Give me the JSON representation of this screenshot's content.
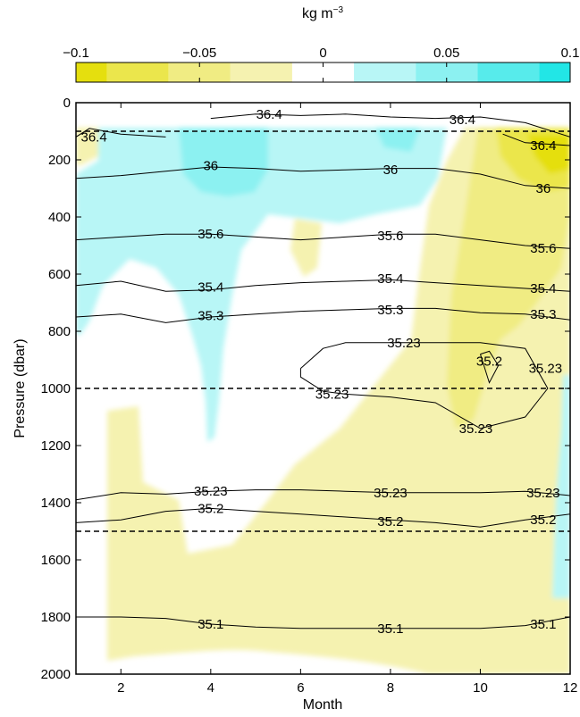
{
  "chart_data": {
    "type": "heatmap",
    "title": "",
    "xlabel": "Month",
    "ylabel": "Pressure (dbar)",
    "xlim": [
      1,
      12
    ],
    "ylim": [
      0,
      2000
    ],
    "y_reversed": true,
    "x_ticks": [
      "2",
      "4",
      "6",
      "8",
      "10",
      "12"
    ],
    "y_ticks": [
      "0",
      "200",
      "400",
      "600",
      "800",
      "1000",
      "1200",
      "1400",
      "1600",
      "1800",
      "2000"
    ],
    "colorbar": {
      "label": "kg m",
      "label_superscript": "−3",
      "range": [
        -0.1,
        0.1
      ],
      "tick_labels": [
        "−0.1",
        "−0.05",
        "0",
        "0.05",
        "0.1"
      ],
      "tick_values": [
        -0.1,
        -0.05,
        0,
        0.05,
        0.1
      ],
      "bins": [
        {
          "from": -0.1,
          "to": -0.0875,
          "color": "#e5df0e"
        },
        {
          "from": -0.0875,
          "to": -0.0625,
          "color": "#ebe64c"
        },
        {
          "from": -0.0625,
          "to": -0.0375,
          "color": "#f0ec83"
        },
        {
          "from": -0.0375,
          "to": -0.0125,
          "color": "#f5f2b0"
        },
        {
          "from": -0.0125,
          "to": 0.0125,
          "color": "#ffffff"
        },
        {
          "from": 0.0125,
          "to": 0.0375,
          "color": "#b8f6f6"
        },
        {
          "from": 0.0375,
          "to": 0.0625,
          "color": "#8cf1f1"
        },
        {
          "from": 0.0625,
          "to": 0.0875,
          "color": "#57ebeb"
        },
        {
          "from": 0.0875,
          "to": 0.1,
          "color": "#22e6e6"
        }
      ]
    },
    "reference_lines_pressure": [
      100,
      1000,
      1500
    ],
    "contours": [
      {
        "label": "36.4",
        "points": [
          [
            4,
            55
          ],
          [
            5,
            40
          ],
          [
            6,
            45
          ],
          [
            7,
            40
          ],
          [
            8,
            50
          ],
          [
            9,
            55
          ],
          [
            10,
            50
          ],
          [
            11,
            70
          ],
          [
            12,
            120
          ]
        ],
        "label_positions": [
          [
            5.3,
            40
          ],
          [
            9.6,
            60
          ]
        ]
      },
      {
        "label": "36.4",
        "points": [
          [
            1,
            120
          ],
          [
            1.3,
            90
          ],
          [
            2,
            110
          ],
          [
            3,
            120
          ]
        ],
        "label_positions": [
          [
            1.4,
            120
          ]
        ]
      },
      {
        "label": "36.4",
        "points": [
          [
            10.5,
            110
          ],
          [
            11,
            140
          ],
          [
            12,
            150
          ]
        ],
        "label_positions": [
          [
            11.4,
            150
          ]
        ]
      },
      {
        "label": "36",
        "points": [
          [
            1,
            265
          ],
          [
            2,
            255
          ],
          [
            3,
            240
          ],
          [
            4,
            225
          ],
          [
            5,
            230
          ],
          [
            6,
            240
          ],
          [
            7,
            235
          ],
          [
            8,
            230
          ],
          [
            9,
            230
          ],
          [
            10,
            250
          ],
          [
            11,
            290
          ],
          [
            12,
            300
          ]
        ],
        "label_positions": [
          [
            4,
            220
          ],
          [
            8,
            235
          ],
          [
            11.4,
            300
          ]
        ]
      },
      {
        "label": "35.6",
        "points": [
          [
            1,
            480
          ],
          [
            2,
            470
          ],
          [
            3,
            460
          ],
          [
            4,
            460
          ],
          [
            5,
            470
          ],
          [
            6,
            480
          ],
          [
            7,
            470
          ],
          [
            8,
            460
          ],
          [
            9,
            460
          ],
          [
            10,
            480
          ],
          [
            11,
            500
          ],
          [
            12,
            510
          ]
        ],
        "label_positions": [
          [
            4,
            460
          ],
          [
            8,
            465
          ],
          [
            11.4,
            510
          ]
        ]
      },
      {
        "label": "35.4",
        "points": [
          [
            1,
            640
          ],
          [
            2,
            625
          ],
          [
            3,
            660
          ],
          [
            4,
            655
          ],
          [
            5,
            640
          ],
          [
            6,
            630
          ],
          [
            7,
            625
          ],
          [
            8,
            620
          ],
          [
            9,
            630
          ],
          [
            10,
            640
          ],
          [
            11,
            650
          ],
          [
            12,
            660
          ]
        ],
        "label_positions": [
          [
            4,
            645
          ],
          [
            8,
            615
          ],
          [
            11.4,
            650
          ]
        ]
      },
      {
        "label": "35.3",
        "points": [
          [
            1,
            750
          ],
          [
            2,
            740
          ],
          [
            3,
            770
          ],
          [
            4,
            750
          ],
          [
            5,
            740
          ],
          [
            6,
            730
          ],
          [
            7,
            725
          ],
          [
            8,
            720
          ],
          [
            9,
            720
          ],
          [
            10,
            735
          ],
          [
            11,
            740
          ],
          [
            12,
            760
          ]
        ],
        "label_positions": [
          [
            4,
            745
          ],
          [
            8,
            725
          ],
          [
            11.4,
            740
          ]
        ]
      },
      {
        "label": "35.23",
        "points": [
          [
            6,
            930
          ],
          [
            6.5,
            860
          ],
          [
            7,
            840
          ],
          [
            8,
            840
          ],
          [
            9,
            840
          ],
          [
            10,
            840
          ],
          [
            11,
            860
          ],
          [
            11.5,
            1000
          ],
          [
            11,
            1100
          ],
          [
            10,
            1140
          ],
          [
            9,
            1050
          ],
          [
            8,
            1030
          ],
          [
            7,
            1020
          ],
          [
            6.5,
            1010
          ],
          [
            6,
            960
          ],
          [
            6,
            930
          ]
        ],
        "label_positions": [
          [
            8.3,
            840
          ],
          [
            11.45,
            930
          ],
          [
            6.7,
            1020
          ],
          [
            9.9,
            1140
          ]
        ]
      },
      {
        "label": "35.2",
        "points": [
          [
            10,
            880
          ],
          [
            10.1,
            930
          ],
          [
            10.2,
            980
          ],
          [
            10.4,
            920
          ],
          [
            10.2,
            870
          ],
          [
            10,
            880
          ]
        ],
        "label_positions": [
          [
            10.2,
            905
          ]
        ]
      },
      {
        "label": "35.23",
        "points": [
          [
            1,
            1390
          ],
          [
            2,
            1365
          ],
          [
            3,
            1370
          ],
          [
            4,
            1360
          ],
          [
            5,
            1355
          ],
          [
            6,
            1355
          ],
          [
            7,
            1360
          ],
          [
            8,
            1365
          ],
          [
            9,
            1365
          ],
          [
            10,
            1365
          ],
          [
            11,
            1360
          ],
          [
            12,
            1375
          ]
        ],
        "label_positions": [
          [
            4,
            1360
          ],
          [
            8,
            1365
          ],
          [
            11.4,
            1365
          ]
        ]
      },
      {
        "label": "35.2",
        "points": [
          [
            1,
            1470
          ],
          [
            2,
            1460
          ],
          [
            3,
            1430
          ],
          [
            4,
            1420
          ],
          [
            5,
            1430
          ],
          [
            6,
            1440
          ],
          [
            7,
            1450
          ],
          [
            8,
            1460
          ],
          [
            9,
            1470
          ],
          [
            10,
            1485
          ],
          [
            11,
            1460
          ],
          [
            12,
            1440
          ]
        ],
        "label_positions": [
          [
            4,
            1420
          ],
          [
            8,
            1465
          ],
          [
            11.4,
            1460
          ]
        ]
      },
      {
        "label": "35.1",
        "points": [
          [
            1,
            1800
          ],
          [
            2,
            1800
          ],
          [
            3,
            1805
          ],
          [
            4,
            1825
          ],
          [
            5,
            1835
          ],
          [
            6,
            1840
          ],
          [
            7,
            1840
          ],
          [
            8,
            1840
          ],
          [
            9,
            1840
          ],
          [
            10,
            1840
          ],
          [
            11,
            1830
          ],
          [
            12,
            1800
          ]
        ],
        "label_positions": [
          [
            4,
            1825
          ],
          [
            8,
            1840
          ],
          [
            11.4,
            1825
          ]
        ]
      }
    ]
  }
}
